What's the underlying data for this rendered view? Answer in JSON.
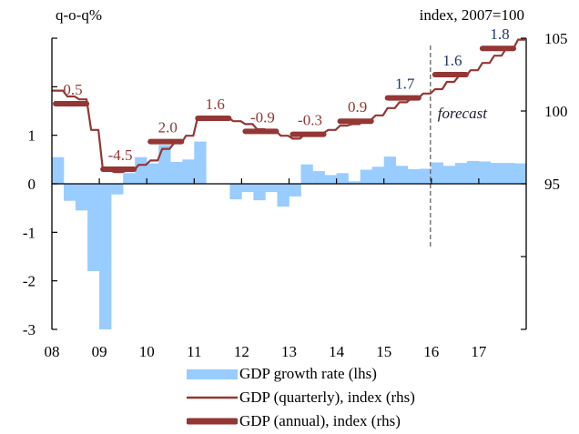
{
  "chart_data": {
    "type": "bar",
    "title": "",
    "left_axis": {
      "unit_label": "q-o-q%",
      "ylim": [
        -3,
        3
      ],
      "ticks": [
        3,
        2,
        1,
        0,
        -1,
        -2,
        -3
      ],
      "tick_labels": [
        "",
        "",
        "1",
        "0",
        "-1",
        "-2",
        "-3"
      ]
    },
    "right_axis": {
      "unit_label": "index, 2007=100",
      "ylim": [
        85,
        105
      ],
      "ticks": [
        105,
        100,
        95,
        90,
        85
      ],
      "tick_labels": [
        "105",
        "100",
        "95",
        "",
        ""
      ]
    },
    "x_axis": {
      "start_year": 2008,
      "end_year": 2018,
      "tick_labels": [
        "08",
        "09",
        "10",
        "11",
        "12",
        "13",
        "14",
        "15",
        "16",
        "17"
      ]
    },
    "forecast": {
      "label": "forecast",
      "start_year": 2016
    },
    "colors": {
      "bars": "#99ccff",
      "line": "#943634",
      "label_past": "#943634",
      "label_forecast": "#1f3864",
      "forecast_line": "#666666"
    },
    "series": [
      {
        "name": "GDP growth rate (lhs)",
        "type": "bar",
        "axis": "left",
        "quarters": [
          "2008Q1",
          "2008Q2",
          "2008Q3",
          "2008Q4",
          "2009Q1",
          "2009Q2",
          "2009Q3",
          "2009Q4",
          "2010Q1",
          "2010Q2",
          "2010Q3",
          "2010Q4",
          "2011Q1",
          "2011Q2",
          "2011Q3",
          "2011Q4",
          "2012Q1",
          "2012Q2",
          "2012Q3",
          "2012Q4",
          "2013Q1",
          "2013Q2",
          "2013Q3",
          "2013Q4",
          "2014Q1",
          "2014Q2",
          "2014Q3",
          "2014Q4",
          "2015Q1",
          "2015Q2",
          "2015Q3",
          "2015Q4",
          "2016Q1",
          "2016Q2",
          "2016Q3",
          "2016Q4",
          "2017Q1",
          "2017Q2",
          "2017Q3",
          "2017Q4"
        ],
        "values": [
          0.55,
          -0.35,
          -0.55,
          -1.8,
          -3.0,
          -0.22,
          0.22,
          0.55,
          0.42,
          0.8,
          0.45,
          0.5,
          0.87,
          0.0,
          0.0,
          -0.32,
          -0.17,
          -0.34,
          -0.17,
          -0.47,
          -0.26,
          0.4,
          0.26,
          0.18,
          0.22,
          0.05,
          0.29,
          0.35,
          0.56,
          0.37,
          0.3,
          0.31,
          0.44,
          0.37,
          0.43,
          0.47,
          0.46,
          0.43,
          0.43,
          0.42
        ]
      },
      {
        "name": "GDP (quarterly), index (rhs)",
        "type": "line",
        "axis": "right",
        "values": [
          101.4,
          101.0,
          100.8,
          98.7,
          95.9,
          95.8,
          95.9,
          96.3,
          96.6,
          97.4,
          97.8,
          98.3,
          99.6,
          99.6,
          99.5,
          99.3,
          99.1,
          98.75,
          98.6,
          98.3,
          98.1,
          98.4,
          98.5,
          98.7,
          99.0,
          99.1,
          99.4,
          99.7,
          100.2,
          100.6,
          100.9,
          101.2,
          101.5,
          102.0,
          102.4,
          102.8,
          103.3,
          103.8,
          104.3,
          104.9
        ]
      },
      {
        "name": "GDP (annual), index (rhs)",
        "type": "step",
        "axis": "right",
        "years": [
          2008,
          2009,
          2010,
          2011,
          2012,
          2013,
          2014,
          2015,
          2016,
          2017
        ],
        "values": [
          100.5,
          96.0,
          97.9,
          99.5,
          98.6,
          98.4,
          99.3,
          100.9,
          102.5,
          104.3
        ],
        "labels": [
          "0.5",
          "-4.5",
          "2.0",
          "1.6",
          "-0.9",
          "-0.3",
          "0.9",
          "1.7",
          "1.6",
          "1.8"
        ],
        "label_forecast_style": [
          false,
          false,
          false,
          false,
          false,
          false,
          false,
          true,
          true,
          true
        ]
      }
    ],
    "legend": {
      "placement": "bottom",
      "entries": [
        "GDP growth rate (lhs)",
        "GDP (quarterly), index (rhs)",
        "GDP (annual), index (rhs)"
      ]
    }
  }
}
